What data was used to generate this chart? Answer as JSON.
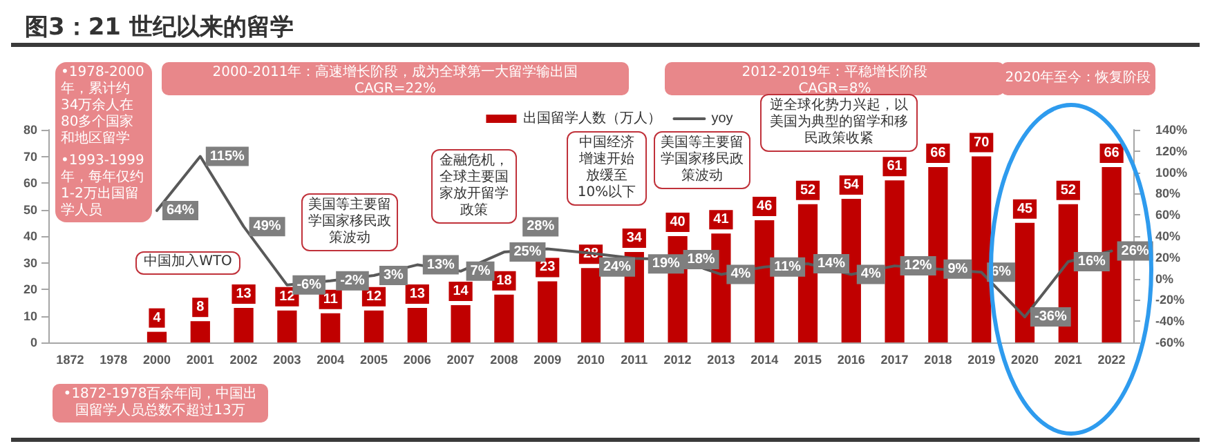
{
  "chart_data": {
    "type": "bar",
    "title": "图3：21 世纪以来的留学",
    "categories": [
      "1872",
      "1978",
      "2000",
      "2001",
      "2002",
      "2003",
      "2004",
      "2005",
      "2006",
      "2007",
      "2008",
      "2009",
      "2010",
      "2011",
      "2012",
      "2013",
      "2014",
      "2015",
      "2016",
      "2017",
      "2018",
      "2019",
      "2020",
      "2021",
      "2022"
    ],
    "series": [
      {
        "name": "出国留学人数（万人）",
        "color": "#c00000",
        "values": [
          null,
          null,
          4,
          8,
          13,
          12,
          11,
          12,
          13,
          14,
          18,
          23,
          28,
          34,
          40,
          41,
          46,
          52,
          54,
          61,
          66,
          70,
          45,
          52,
          66
        ],
        "value_labels": [
          null,
          null,
          "4",
          "8",
          "13",
          "12",
          "11",
          "12",
          "13",
          "14",
          "18",
          "23",
          "28",
          "34",
          "40",
          "41",
          "46",
          "52",
          "54",
          "61",
          "66",
          "70",
          "45",
          "52",
          "66"
        ]
      },
      {
        "name": "yoy",
        "type": "line",
        "axis": "y2",
        "color": "#595959",
        "marker": "none",
        "values": [
          null,
          null,
          64,
          115,
          49,
          -6,
          -2,
          3,
          13,
          7,
          25,
          28,
          24,
          19,
          18,
          4,
          11,
          14,
          4,
          12,
          9,
          6,
          -36,
          16,
          26
        ],
        "value_labels": [
          null,
          null,
          "64%",
          "115%",
          "49%",
          "-6%",
          "-2%",
          "3%",
          "13%",
          "7%",
          "25%",
          "28%",
          "24%",
          "19%",
          "18%",
          "4%",
          "11%",
          "14%",
          "4%",
          "12%",
          "9%",
          "6%",
          "-36%",
          "16%",
          "26%"
        ]
      }
    ],
    "ylim": [
      0,
      80
    ],
    "yticks": [
      0,
      10,
      20,
      30,
      40,
      50,
      60,
      70,
      80
    ],
    "y2lim": [
      -60,
      140
    ],
    "y2ticks": [
      {
        "value": -60,
        "label": "-60%"
      },
      {
        "value": -40,
        "label": "-40%"
      },
      {
        "value": -20,
        "label": "-20%"
      },
      {
        "value": 0,
        "label": "0%"
      },
      {
        "value": 20,
        "label": "20%"
      },
      {
        "value": 40,
        "label": "40%"
      },
      {
        "value": 60,
        "label": "60%"
      },
      {
        "value": 80,
        "label": "80%"
      },
      {
        "value": 100,
        "label": "100%"
      },
      {
        "value": 120,
        "label": "120%"
      },
      {
        "value": 140,
        "label": "140%"
      }
    ],
    "grid": false,
    "legend": "top",
    "annotations": [
      "•1978-2000年，累计约34万余人在80多个国家和地区留学",
      "•1993-1999年，每年仅约1-2万出国留学人员",
      "2000-2011年：高速增长阶段，成为全球第一大留学输出国\nCAGR=22%",
      "2012-2019年：平稳增长阶段\nCAGR=8%",
      "2020年至今：恢复阶段",
      "中国加入WTO",
      "美国等主要留学国家移民政策波动",
      "金融危机，全球主要国家放开留学政策",
      "中国经济增速开始放缓至10%以下",
      "美国等主要留学国家移民政策波动",
      "逆全球化势力兴起，以美国为典型的留学和移民政策收紧",
      "•1872-1978百余年间，中国出国留学人员总数不超过13万"
    ]
  }
}
